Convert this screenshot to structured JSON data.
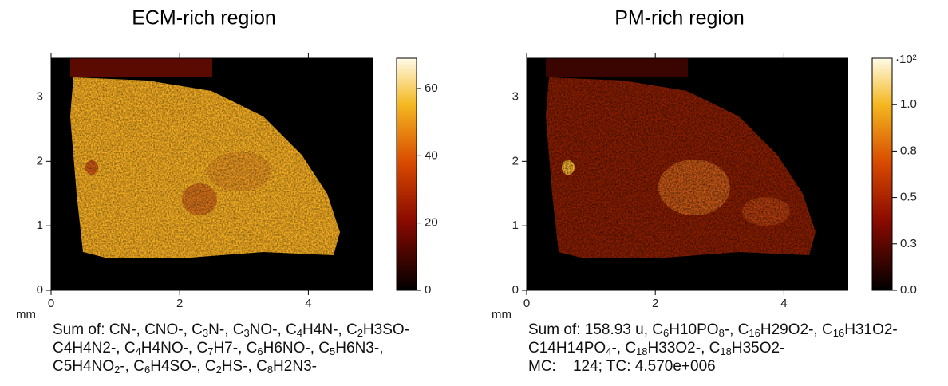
{
  "panels": [
    {
      "title": "ECM-rich region",
      "axis_unit": "mm",
      "xlim": [
        0,
        5
      ],
      "xticks": [
        0,
        2,
        4
      ],
      "ylim": [
        0,
        3.6
      ],
      "yticks": [
        0,
        1,
        2,
        3
      ],
      "colorbar": {
        "lim": [
          0,
          69
        ],
        "ticks": [
          0,
          20,
          40,
          60
        ]
      },
      "caption": [
        "Sum of: CN-, CNO-, C3N-, C3NO-, C4H4N-, C2H3SO-",
        "C4H4N2-, C4H4NO-, C7H7-, C6H6NO-, C5H6N3-,",
        "C5H4NO2-, C6H4SO-, C2HS-, C8H2N3-"
      ]
    },
    {
      "title": "PM-rich region",
      "axis_unit": "mm",
      "xlim": [
        0,
        5
      ],
      "xticks": [
        0,
        2,
        4
      ],
      "ylim": [
        0,
        3.6
      ],
      "yticks": [
        0,
        1,
        2,
        3
      ],
      "colorbar": {
        "lim": [
          0,
          1.25
        ],
        "exponent": "·10²",
        "ticks": [
          {
            "value": 0,
            "label": "0.0"
          },
          {
            "value": 0.25,
            "label": "0.3"
          },
          0.5,
          {
            "value": 0.75,
            "label": "0.8"
          },
          {
            "value": 1,
            "label": "1.0"
          }
        ]
      },
      "caption": [
        "Sum of: 158.93 u, C6H10PO8-, C16H29O2-, C16H31O2-",
        "C14H14PO4-, C18H33O2-, C18H35O2-",
        "MC:    124; TC: 4.570e+006"
      ]
    }
  ]
}
